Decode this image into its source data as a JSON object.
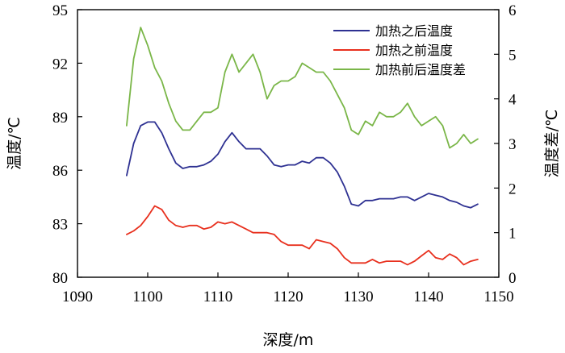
{
  "chart_data": {
    "type": "line",
    "xlabel": "深度/m",
    "ylabel_left": "温度/℃",
    "ylabel_right": "温度差/℃",
    "xlim": [
      1090,
      1150
    ],
    "ylim_left": [
      80,
      95
    ],
    "ylim_right": [
      0,
      6
    ],
    "xticks": [
      1090,
      1100,
      1110,
      1120,
      1130,
      1140,
      1150
    ],
    "yticks_left": [
      80,
      83,
      86,
      89,
      92,
      95
    ],
    "yticks_right": [
      0,
      1,
      2,
      3,
      4,
      5,
      6
    ],
    "grid": false,
    "legend_position": "top-right",
    "series": [
      {
        "name": "加热之后温度",
        "axis": "left",
        "color": "#2e3192",
        "x": [
          1097,
          1098,
          1099,
          1100,
          1101,
          1102,
          1103,
          1104,
          1105,
          1106,
          1107,
          1108,
          1109,
          1110,
          1111,
          1112,
          1113,
          1114,
          1115,
          1116,
          1117,
          1118,
          1119,
          1120,
          1121,
          1122,
          1123,
          1124,
          1125,
          1126,
          1127,
          1128,
          1129,
          1130,
          1131,
          1132,
          1133,
          1134,
          1135,
          1136,
          1137,
          1138,
          1139,
          1140,
          1141,
          1142,
          1143,
          1144,
          1145,
          1146,
          1147
        ],
        "y": [
          85.7,
          87.5,
          88.5,
          88.7,
          88.7,
          88.1,
          87.2,
          86.4,
          86.1,
          86.2,
          86.2,
          86.3,
          86.5,
          86.9,
          87.6,
          88.1,
          87.6,
          87.2,
          87.2,
          87.2,
          86.8,
          86.3,
          86.2,
          86.3,
          86.3,
          86.5,
          86.4,
          86.7,
          86.7,
          86.4,
          85.9,
          85.1,
          84.1,
          84.0,
          84.3,
          84.3,
          84.4,
          84.4,
          84.4,
          84.5,
          84.5,
          84.3,
          84.5,
          84.7,
          84.6,
          84.5,
          84.3,
          84.2,
          84.0,
          83.9,
          84.1
        ]
      },
      {
        "name": "加热之前温度",
        "axis": "left",
        "color": "#e8301e",
        "x": [
          1097,
          1098,
          1099,
          1100,
          1101,
          1102,
          1103,
          1104,
          1105,
          1106,
          1107,
          1108,
          1109,
          1110,
          1111,
          1112,
          1113,
          1114,
          1115,
          1116,
          1117,
          1118,
          1119,
          1120,
          1121,
          1122,
          1123,
          1124,
          1125,
          1126,
          1127,
          1128,
          1129,
          1130,
          1131,
          1132,
          1133,
          1134,
          1135,
          1136,
          1137,
          1138,
          1139,
          1140,
          1141,
          1142,
          1143,
          1144,
          1145,
          1146,
          1147
        ],
        "y": [
          82.4,
          82.6,
          82.9,
          83.4,
          84.0,
          83.8,
          83.2,
          82.9,
          82.8,
          82.9,
          82.9,
          82.7,
          82.8,
          83.1,
          83.0,
          83.1,
          82.9,
          82.7,
          82.5,
          82.5,
          82.5,
          82.4,
          82.0,
          81.8,
          81.8,
          81.8,
          81.6,
          82.1,
          82.0,
          81.9,
          81.6,
          81.1,
          80.8,
          80.8,
          80.8,
          81.0,
          80.8,
          80.9,
          80.9,
          80.9,
          80.7,
          80.9,
          81.2,
          81.5,
          81.1,
          81.0,
          81.3,
          81.1,
          80.7,
          80.9,
          81.0
        ]
      },
      {
        "name": "加热前后温度差",
        "axis": "right",
        "color": "#7ab648",
        "x": [
          1097,
          1098,
          1099,
          1100,
          1101,
          1102,
          1103,
          1104,
          1105,
          1106,
          1107,
          1108,
          1109,
          1110,
          1111,
          1112,
          1113,
          1114,
          1115,
          1116,
          1117,
          1118,
          1119,
          1120,
          1121,
          1122,
          1123,
          1124,
          1125,
          1126,
          1127,
          1128,
          1129,
          1130,
          1131,
          1132,
          1133,
          1134,
          1135,
          1136,
          1137,
          1138,
          1139,
          1140,
          1141,
          1142,
          1143,
          1144,
          1145,
          1146,
          1147
        ],
        "y": [
          3.4,
          4.9,
          5.6,
          5.2,
          4.7,
          4.4,
          3.9,
          3.5,
          3.3,
          3.3,
          3.5,
          3.7,
          3.7,
          3.8,
          4.6,
          5.0,
          4.6,
          4.8,
          5.0,
          4.6,
          4.0,
          4.3,
          4.4,
          4.4,
          4.5,
          4.8,
          4.7,
          4.6,
          4.6,
          4.4,
          4.1,
          3.8,
          3.3,
          3.2,
          3.5,
          3.4,
          3.7,
          3.6,
          3.6,
          3.7,
          3.9,
          3.6,
          3.4,
          3.5,
          3.6,
          3.4,
          2.9,
          3.0,
          3.2,
          3.0,
          3.1
        ]
      }
    ]
  }
}
